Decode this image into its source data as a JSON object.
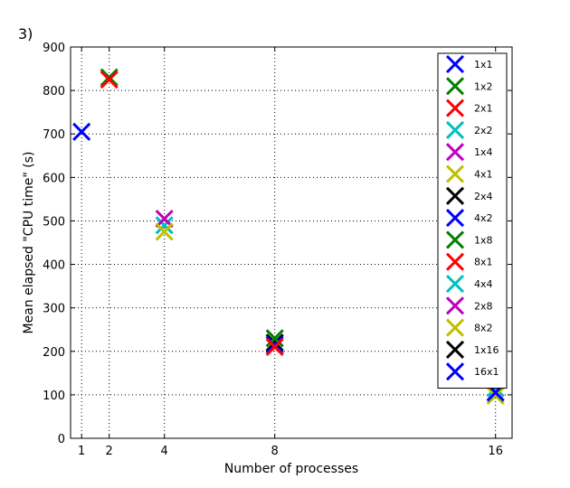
{
  "panel_label": "3)",
  "chart_data": {
    "type": "scatter",
    "title": "",
    "xlabel": "Number of processes",
    "ylabel": "Mean elapsed \"CPU time\" (s)",
    "xticks": [
      1,
      2,
      4,
      8,
      16
    ],
    "xtick_labels": [
      "1",
      "2",
      "4",
      "8",
      "16"
    ],
    "yticks": [
      0,
      100,
      200,
      300,
      400,
      500,
      600,
      700,
      800,
      900
    ],
    "ytick_labels": [
      "0",
      "100",
      "200",
      "300",
      "400",
      "500",
      "600",
      "700",
      "800",
      "900"
    ],
    "xlim": [
      0.6,
      16.6
    ],
    "ylim": [
      0,
      900
    ],
    "grid": true,
    "grid_style": "dotted",
    "marker": "x",
    "legend_position": "upper-right",
    "series": [
      {
        "name": "1x1",
        "color": "#0000ff",
        "x": 1,
        "y": 705
      },
      {
        "name": "1x2",
        "color": "#008000",
        "x": 2,
        "y": 830
      },
      {
        "name": "2x1",
        "color": "#ff0000",
        "x": 2,
        "y": 825
      },
      {
        "name": "2x2",
        "color": "#00bfbf",
        "x": 4,
        "y": 490
      },
      {
        "name": "1x4",
        "color": "#bf00bf",
        "x": 4,
        "y": 505
      },
      {
        "name": "4x1",
        "color": "#bfbf00",
        "x": 4,
        "y": 475
      },
      {
        "name": "2x4",
        "color": "#000000",
        "x": 8,
        "y": 220
      },
      {
        "name": "4x2",
        "color": "#0000ff",
        "x": 8,
        "y": 215
      },
      {
        "name": "1x8",
        "color": "#008000",
        "x": 8,
        "y": 230
      },
      {
        "name": "8x1",
        "color": "#ff0000",
        "x": 8,
        "y": 210
      },
      {
        "name": "4x4",
        "color": "#00bfbf",
        "x": 16,
        "y": 115
      },
      {
        "name": "2x8",
        "color": "#bf00bf",
        "x": 16,
        "y": 105
      },
      {
        "name": "8x2",
        "color": "#bfbf00",
        "x": 16,
        "y": 98
      },
      {
        "name": "1x16",
        "color": "#000000",
        "x": 16,
        "y": 135
      },
      {
        "name": "16x1",
        "color": "#0000ff",
        "x": 16,
        "y": 105
      }
    ]
  }
}
